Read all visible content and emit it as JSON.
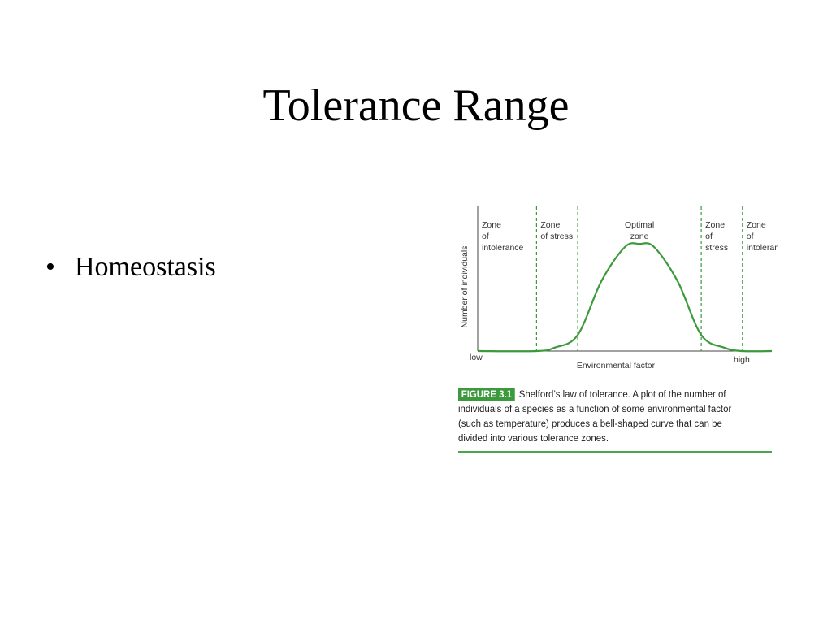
{
  "slide": {
    "title": "Tolerance Range",
    "bullets": [
      {
        "marker": "•",
        "text": "Homeostasis"
      }
    ]
  },
  "figure": {
    "label": "FIGURE 3.1",
    "caption": "Shelford’s law of tolerance. A plot of the number of individuals of a species as a function of some environmental factor (such as temperature) produces a bell-shaped curve that can be divided into various tolerance zones.",
    "accent_color": "#3c9a3c"
  },
  "chart_data": {
    "type": "line",
    "title": "",
    "xlabel": "Environmental factor",
    "ylabel": "Number of individuals",
    "x_tick_labels": [
      "low",
      "high"
    ],
    "zones": [
      {
        "lines": [
          "Zone",
          "of",
          "intolerance"
        ]
      },
      {
        "lines": [
          "Zone",
          "of stress"
        ]
      },
      {
        "lines": [
          "Optimal",
          "zone"
        ]
      },
      {
        "lines": [
          "Zone",
          "of",
          "stress"
        ]
      },
      {
        "lines": [
          "Zone",
          "of",
          "intolerance"
        ]
      }
    ],
    "zone_boundaries": [
      0.2,
      0.34,
      0.76,
      0.9
    ],
    "x": [
      0.0,
      0.2,
      0.26,
      0.34,
      0.42,
      0.5,
      0.55,
      0.6,
      0.68,
      0.76,
      0.84,
      0.9,
      1.0
    ],
    "y": [
      0.0,
      0.0,
      0.03,
      0.15,
      0.65,
      0.97,
      1.0,
      0.97,
      0.65,
      0.15,
      0.03,
      0.0,
      0.0
    ],
    "xlim": [
      0,
      1
    ],
    "ylim": [
      0,
      1.35
    ],
    "grid": false,
    "line_color": "#3c9a3c"
  }
}
